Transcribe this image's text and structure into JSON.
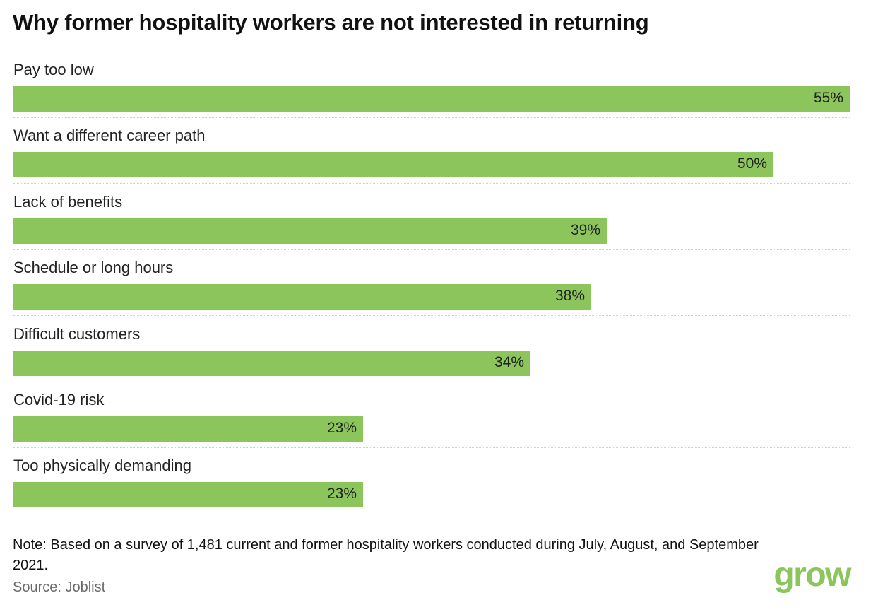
{
  "title": "Why former hospitality workers are not interested in returning",
  "chart_data": {
    "type": "bar",
    "orientation": "horizontal",
    "title": "Why former hospitality workers are not interested in returning",
    "categories": [
      "Pay too low",
      "Want a different career path",
      "Lack of benefits",
      "Schedule or long hours",
      "Difficult customers",
      "Covid-19 risk",
      "Too physically demanding"
    ],
    "values": [
      55,
      50,
      39,
      38,
      34,
      23,
      23
    ],
    "value_labels": [
      "55%",
      "50%",
      "39%",
      "38%",
      "34%",
      "23%",
      "23%"
    ],
    "unit": "%",
    "xlim": [
      0,
      55
    ],
    "bar_color": "#8bc55c"
  },
  "note": "Note: Based on a survey of 1,481 current and former hospitality workers conducted during July, August, and September 2021.",
  "source": "Source: Joblist",
  "logo": "grow",
  "colors": {
    "bar": "#8bc55c",
    "logo": "#8bc55c",
    "source_text": "#6b6b6b"
  }
}
